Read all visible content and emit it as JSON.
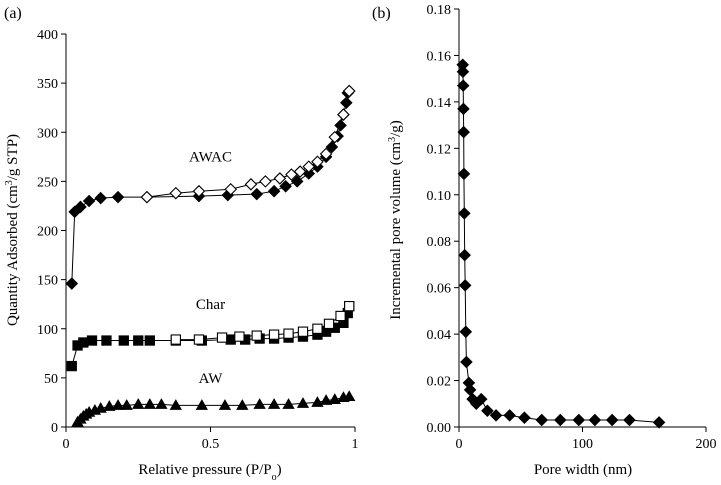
{
  "chart_data": [
    {
      "type": "scatter",
      "panel_label": "(a)",
      "xlabel": "Relative pressure (P/P",
      "xlabel_sub": "o",
      "xlabel_end": ")",
      "ylabel": "Quantity Adsorbed (cm",
      "ylabel_sup": "3",
      "ylabel_end": "/g STP)",
      "xlim": [
        0,
        1
      ],
      "ylim": [
        0,
        400
      ],
      "xticks": [
        0,
        0.5,
        1
      ],
      "xtick_labels": [
        "0",
        "0.5",
        "1"
      ],
      "yticks": [
        0,
        50,
        100,
        150,
        200,
        250,
        300,
        350,
        400
      ],
      "ytick_labels": [
        "0",
        "50",
        "100",
        "150",
        "200",
        "250",
        "300",
        "350",
        "400"
      ],
      "grid": false,
      "series_labels": [
        {
          "text": "AWAC",
          "x": 0.5,
          "y": 270
        },
        {
          "text": "Char",
          "x": 0.5,
          "y": 120
        },
        {
          "text": "AW",
          "x": 0.5,
          "y": 45
        }
      ],
      "series": [
        {
          "group": "AWAC",
          "branch": "adsorption",
          "marker": "diamond",
          "fill": "filled",
          "x": [
            0.02,
            0.03,
            0.05,
            0.08,
            0.12,
            0.18,
            0.28,
            0.46,
            0.56,
            0.66,
            0.72,
            0.76,
            0.8,
            0.84,
            0.87,
            0.9,
            0.92,
            0.94,
            0.95,
            0.96,
            0.97,
            0.975,
            0.98
          ],
          "y": [
            146,
            219,
            224,
            230,
            233,
            234,
            234,
            235,
            236,
            237,
            240,
            245,
            250,
            258,
            265,
            275,
            285,
            296,
            307,
            318,
            330,
            340,
            342
          ]
        },
        {
          "group": "AWAC",
          "branch": "desorption",
          "marker": "diamond",
          "fill": "open",
          "x": [
            0.98,
            0.96,
            0.93,
            0.9,
            0.87,
            0.84,
            0.81,
            0.78,
            0.74,
            0.69,
            0.64,
            0.57,
            0.46,
            0.38,
            0.28
          ],
          "y": [
            342,
            318,
            295,
            278,
            270,
            265,
            260,
            257,
            253,
            250,
            247,
            242,
            240,
            238,
            234
          ]
        },
        {
          "group": "Char",
          "branch": "adsorption",
          "marker": "square",
          "fill": "filled",
          "x": [
            0.02,
            0.04,
            0.06,
            0.09,
            0.14,
            0.2,
            0.25,
            0.29,
            0.38,
            0.47,
            0.57,
            0.62,
            0.67,
            0.72,
            0.77,
            0.82,
            0.87,
            0.9,
            0.93,
            0.96,
            0.975,
            0.98
          ],
          "y": [
            62,
            83,
            86,
            88,
            88,
            88,
            88,
            88,
            88,
            88,
            89,
            89,
            90,
            90,
            91,
            92,
            94,
            97,
            101,
            106,
            116,
            123
          ]
        },
        {
          "group": "Char",
          "branch": "desorption",
          "marker": "square",
          "fill": "open",
          "x": [
            0.98,
            0.95,
            0.91,
            0.87,
            0.82,
            0.77,
            0.72,
            0.66,
            0.6,
            0.54,
            0.46,
            0.38
          ],
          "y": [
            123,
            113,
            105,
            100,
            97,
            95,
            94,
            93,
            92,
            91,
            89,
            89
          ]
        },
        {
          "group": "AW",
          "branch": "adsorption",
          "marker": "triangle",
          "fill": "filled",
          "x": [
            0.04,
            0.05,
            0.06,
            0.07,
            0.08,
            0.1,
            0.12,
            0.15,
            0.18,
            0.21,
            0.25,
            0.29,
            0.33,
            0.38,
            0.47,
            0.55,
            0.61,
            0.67,
            0.72,
            0.77,
            0.82,
            0.87,
            0.9,
            0.93,
            0.96,
            0.98
          ],
          "y": [
            5,
            8,
            11,
            13,
            15,
            17,
            19,
            21,
            22,
            22,
            23,
            23,
            23,
            22,
            22,
            22,
            22,
            23,
            23,
            23,
            24,
            25,
            27,
            28,
            30,
            31
          ]
        }
      ]
    },
    {
      "type": "line",
      "panel_label": "(b)",
      "xlabel": "Pore width (nm)",
      "ylabel": "Incremental pore volume (cm",
      "ylabel_sup": "3",
      "ylabel_end": "/g)",
      "xlim": [
        0,
        200
      ],
      "ylim": [
        0,
        0.18
      ],
      "xticks": [
        0,
        100,
        200
      ],
      "xtick_labels": [
        "0",
        "100",
        "200"
      ],
      "yticks": [
        0,
        0.02,
        0.04,
        0.06,
        0.08,
        0.1,
        0.12,
        0.14,
        0.16,
        0.18
      ],
      "ytick_labels": [
        "0.00",
        "0.02",
        "0.04",
        "0.06",
        "0.08",
        "0.10",
        "0.12",
        "0.14",
        "0.16",
        "0.18"
      ],
      "grid": false,
      "series": [
        {
          "marker": "diamond",
          "fill": "filled",
          "x": [
            3.0,
            3.2,
            3.4,
            3.6,
            3.8,
            4.0,
            4.3,
            4.6,
            5.0,
            5.5,
            6.0,
            8.0,
            9.0,
            11.0,
            14.0,
            18.0,
            23.0,
            30.0,
            41.0,
            53.0,
            67.0,
            82.0,
            97.0,
            110.0,
            124.0,
            138.0,
            162.0
          ],
          "y": [
            0.156,
            0.153,
            0.147,
            0.137,
            0.127,
            0.109,
            0.092,
            0.074,
            0.061,
            0.041,
            0.028,
            0.019,
            0.016,
            0.012,
            0.01,
            0.012,
            0.007,
            0.005,
            0.005,
            0.004,
            0.003,
            0.003,
            0.003,
            0.003,
            0.003,
            0.003,
            0.002
          ]
        }
      ]
    }
  ]
}
